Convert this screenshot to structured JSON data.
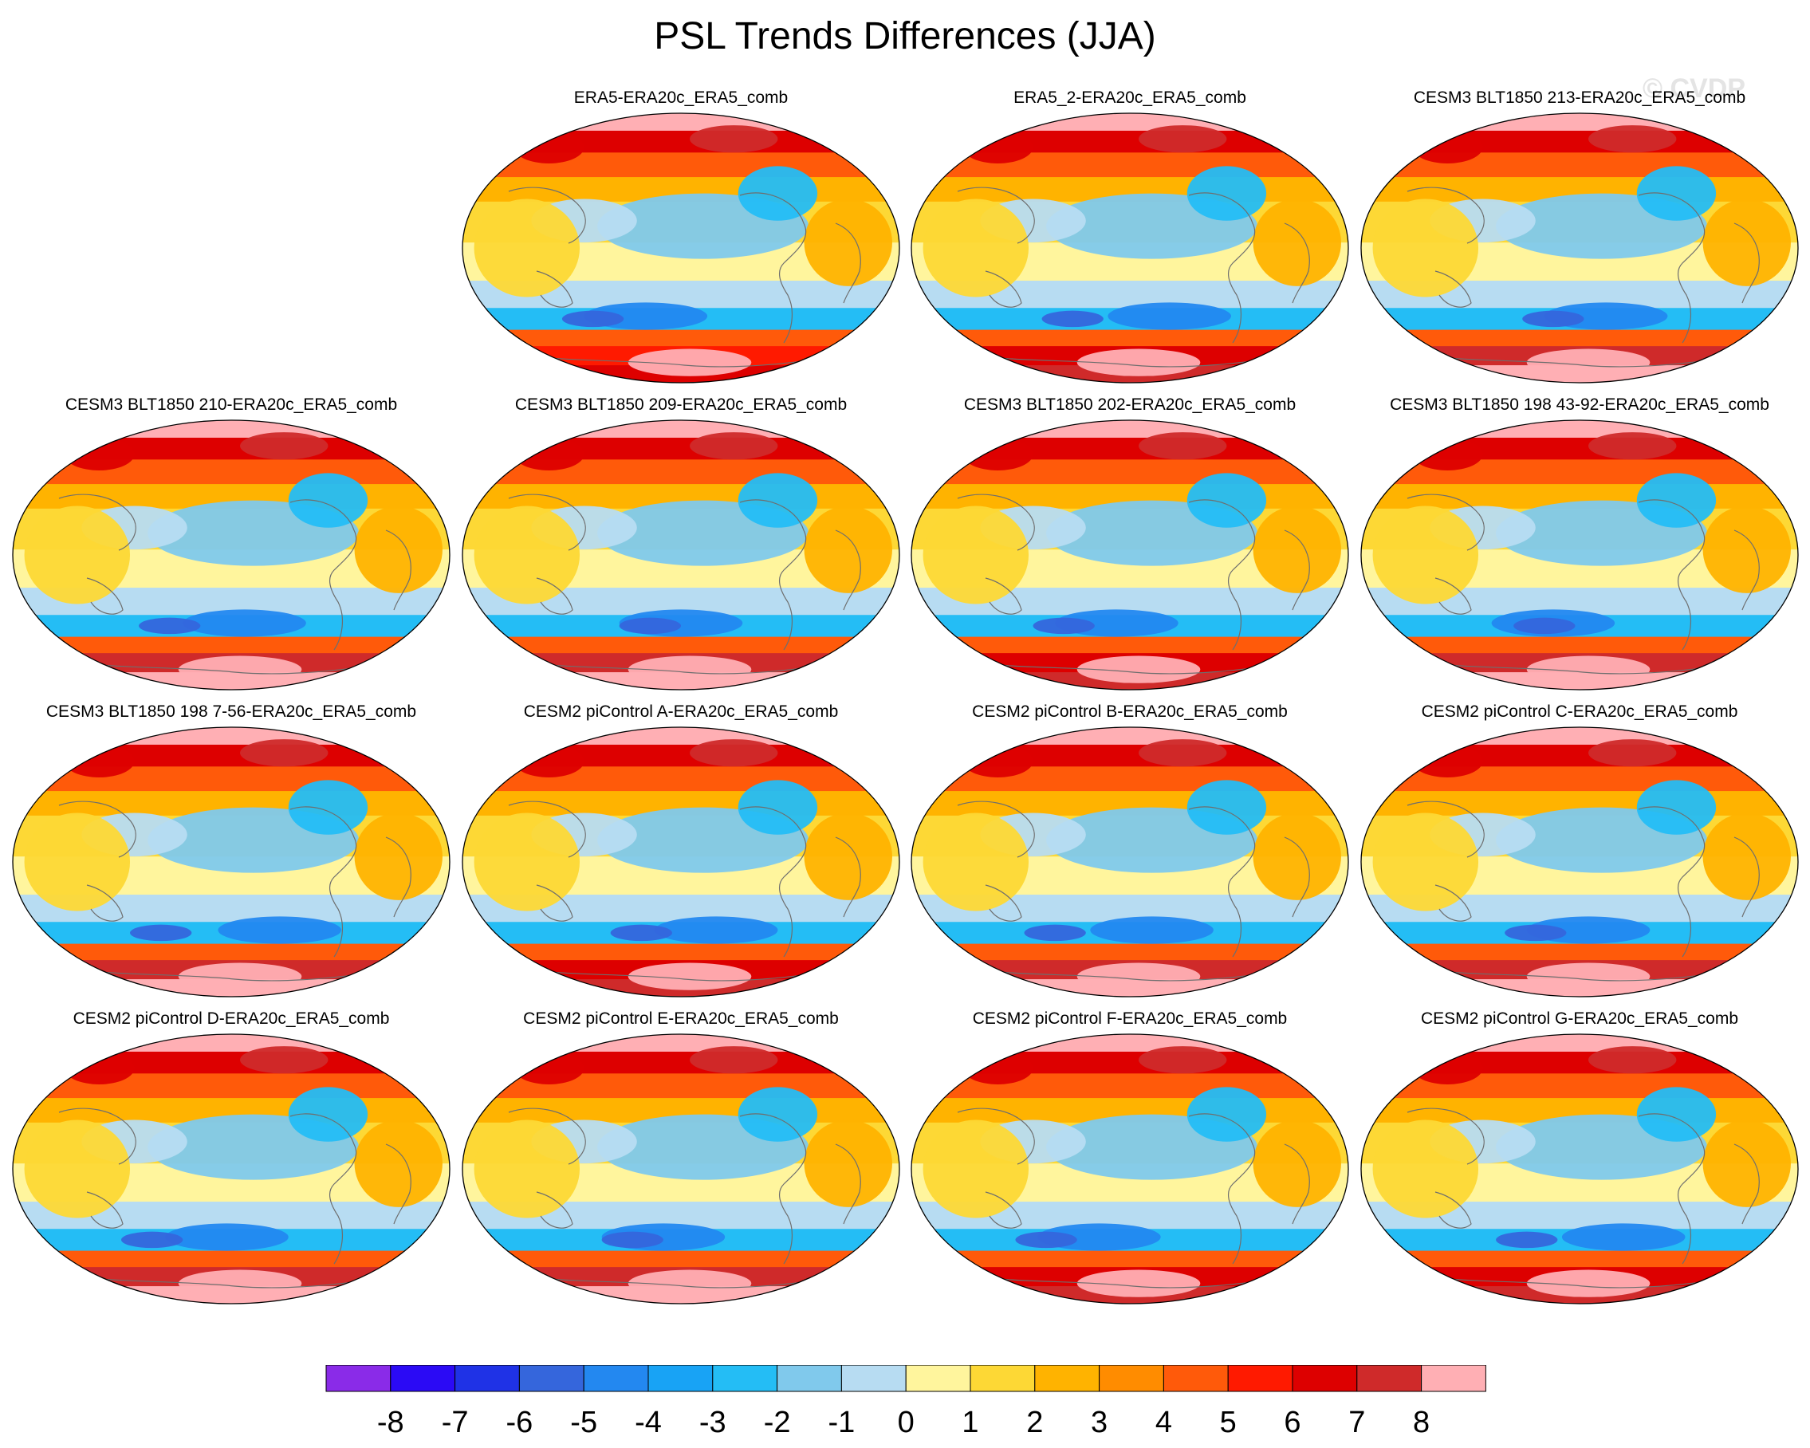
{
  "title": "PSL Trends Differences (JJA)",
  "watermark": "© CVDP",
  "panels": [
    {
      "label": "ERA5-ERA20c_ERA5_comb",
      "south_max": 6
    },
    {
      "label": "ERA5_2-ERA20c_ERA5_comb",
      "south_max": 7
    },
    {
      "label": "CESM3 BLT1850 213-ERA20c_ERA5_comb",
      "south_max": 8
    },
    {
      "label": "CESM3 BLT1850 210-ERA20c_ERA5_comb",
      "south_max": 8
    },
    {
      "label": "CESM3 BLT1850 209-ERA20c_ERA5_comb",
      "south_max": 8
    },
    {
      "label": "CESM3 BLT1850 202-ERA20c_ERA5_comb",
      "south_max": 7
    },
    {
      "label": "CESM3 BLT1850 198 43-92-ERA20c_ERA5_comb",
      "south_max": 8
    },
    {
      "label": "CESM3 BLT1850 198 7-56-ERA20c_ERA5_comb",
      "south_max": 8
    },
    {
      "label": "CESM2 piControl A-ERA20c_ERA5_comb",
      "south_max": 7
    },
    {
      "label": "CESM2 piControl B-ERA20c_ERA5_comb",
      "south_max": 8
    },
    {
      "label": "CESM2 piControl C-ERA20c_ERA5_comb",
      "south_max": 8
    },
    {
      "label": "CESM2 piControl D-ERA20c_ERA5_comb",
      "south_max": 8
    },
    {
      "label": "CESM2 piControl E-ERA20c_ERA5_comb",
      "south_max": 8
    },
    {
      "label": "CESM2 piControl F-ERA20c_ERA5_comb",
      "south_max": 7
    },
    {
      "label": "CESM2 piControl G-ERA20c_ERA5_comb",
      "south_max": 7
    }
  ],
  "colorbar": {
    "levels": [
      "-8",
      "-7",
      "-6",
      "-5",
      "-4",
      "-3",
      "-2",
      "-1",
      "0",
      "1",
      "2",
      "3",
      "4",
      "5",
      "6",
      "7",
      "8"
    ],
    "colors": [
      "#8a2be8",
      "#2b0af5",
      "#1f32e6",
      "#3566dc",
      "#2388f0",
      "#18a3f5",
      "#24bdf5",
      "#80c9ec",
      "#b7dcf2",
      "#fff59d",
      "#fdd835",
      "#ffb300",
      "#ff8c00",
      "#ff5a0a",
      "#ff1a00",
      "#dd0000",
      "#cf2a2a",
      "#ffafb4"
    ]
  }
}
